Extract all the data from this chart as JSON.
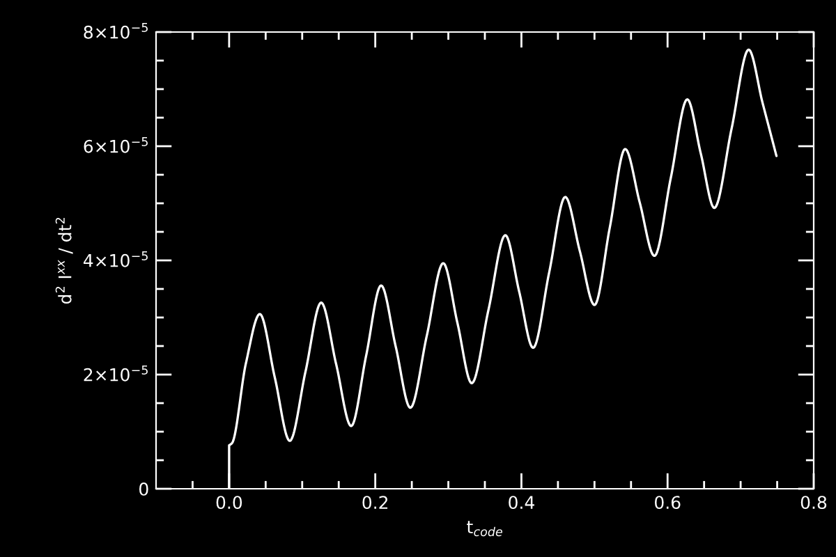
{
  "chart_data": {
    "type": "line",
    "xlabel": "t$_{code}$",
    "ylabel": "d$^{2}$ I$^{xx}$ / dt$^{2}$",
    "grid": false,
    "line_style": "solid",
    "marker": "none",
    "xlim": [
      -0.1,
      0.8
    ],
    "xticks": [
      {
        "value": -0.05,
        "label": null
      },
      {
        "value": 0,
        "label": "0.0"
      },
      {
        "value": 0.05,
        "label": null
      },
      {
        "value": 0.1,
        "label": null
      },
      {
        "value": 0.15,
        "label": null
      },
      {
        "value": 0.2,
        "label": "0.2"
      },
      {
        "value": 0.25,
        "label": null
      },
      {
        "value": 0.3,
        "label": null
      },
      {
        "value": 0.35,
        "label": null
      },
      {
        "value": 0.4,
        "label": "0.4"
      },
      {
        "value": 0.45,
        "label": null
      },
      {
        "value": 0.5,
        "label": null
      },
      {
        "value": 0.55,
        "label": null
      },
      {
        "value": 0.6,
        "label": "0.6"
      },
      {
        "value": 0.65,
        "label": null
      },
      {
        "value": 0.7,
        "label": null
      },
      {
        "value": 0.75,
        "label": null
      },
      {
        "value": 0.8,
        "label": "0.8"
      }
    ],
    "ylim": [
      0,
      8e-05
    ],
    "yticks": [
      0,
      {
        "value": 5e-06,
        "label": null
      },
      {
        "value": 1e-05,
        "label": null
      },
      {
        "value": 1.5e-05,
        "label": null
      },
      {
        "value": 2e-05,
        "label": "2×10$^{−5}$"
      },
      {
        "value": 2.5e-05,
        "label": null
      },
      {
        "value": 3e-05,
        "label": null
      },
      {
        "value": 3.5e-05,
        "label": null
      },
      {
        "value": 4e-05,
        "label": "4×10$^{−5}$"
      },
      {
        "value": 4.5e-05,
        "label": null
      },
      {
        "value": 5e-05,
        "label": null
      },
      {
        "value": 5.5e-05,
        "label": null
      },
      {
        "value": 6e-05,
        "label": "6×10$^{−5}$"
      },
      {
        "value": 6.5e-05,
        "label": null
      },
      {
        "value": 7e-05,
        "label": null
      },
      {
        "value": 7.5e-05,
        "label": null
      },
      {
        "value": 8e-05,
        "label": "8×10$^{−5}$"
      }
    ],
    "series": [
      {
        "color": "#ffffff",
        "x": [
          0,
          0,
          0.004,
          0.023,
          0.042,
          0.0625,
          0.083,
          0.1045,
          0.126,
          0.1465,
          0.167,
          0.1875,
          0.208,
          0.228,
          0.248,
          0.2705,
          0.293,
          0.3125,
          0.332,
          0.355,
          0.378,
          0.397,
          0.416,
          0.438,
          0.46,
          0.48,
          0.5,
          0.521,
          0.542,
          0.562,
          0.582,
          0.6045,
          0.627,
          0.6455,
          0.664,
          0.6875,
          0.711,
          0.73,
          0.749
        ],
        "values": [
          0,
          7.6e-06,
          8e-06,
          2.2e-05,
          3.06e-05,
          1.95e-05,
          8.4e-06,
          2.05e-05,
          3.26e-05,
          2.18e-05,
          1.1e-05,
          2.33e-05,
          3.56e-05,
          2.49e-05,
          1.42e-05,
          2.68e-05,
          3.95e-05,
          2.9e-05,
          1.85e-05,
          3.14e-05,
          4.44e-05,
          3.45e-05,
          2.47e-05,
          3.79e-05,
          5.11e-05,
          4.16e-05,
          3.22e-05,
          4.58e-05,
          5.95e-05,
          5.01e-05,
          4.08e-05,
          5.45e-05,
          6.82e-05,
          5.87e-05,
          4.92e-05,
          6.3e-05,
          7.69e-05,
          6.76e-05,
          5.83e-05
        ]
      }
    ]
  }
}
